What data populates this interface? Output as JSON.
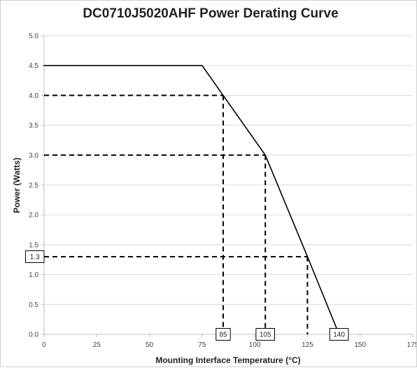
{
  "chart_data": {
    "type": "line",
    "title": "DC0710J5020AHF Power Derating Curve",
    "xlabel": "Mounting Interface Temperature (°C)",
    "ylabel": "Power (Watts)",
    "xlim": [
      0,
      175
    ],
    "ylim": [
      0,
      5.0
    ],
    "xticks": [
      "0",
      "25",
      "50",
      "75",
      "100",
      "125",
      "150",
      "175"
    ],
    "yticks": [
      "0.0",
      "0.5",
      "1.0",
      "1.5",
      "2.0",
      "2.5",
      "3.0",
      "3.5",
      "4.0",
      "4.5",
      "5.0"
    ],
    "grid": "horizontal",
    "legend": "none",
    "series": [
      {
        "points": [
          [
            0,
            4.5
          ],
          [
            75,
            4.5
          ],
          [
            85,
            4.0
          ],
          [
            105,
            3.0
          ],
          [
            125,
            1.3
          ],
          [
            140,
            0.0
          ]
        ]
      }
    ],
    "reference_lines": [
      {
        "x": 85,
        "y": 4.0
      },
      {
        "x": 105,
        "y": 3.0
      },
      {
        "x": 125,
        "y": 1.3
      }
    ],
    "annotations": [
      {
        "text": "85",
        "x": 85,
        "y": 0.0
      },
      {
        "text": "105",
        "x": 105,
        "y": 0.0
      },
      {
        "text": "140",
        "x": 140,
        "y": 0.0
      },
      {
        "text": "1.3",
        "x": 0,
        "y": 1.3
      }
    ],
    "colors": {
      "line": "#000000",
      "grid": "#d9d9d9",
      "axis": "#bfbfbf"
    }
  }
}
